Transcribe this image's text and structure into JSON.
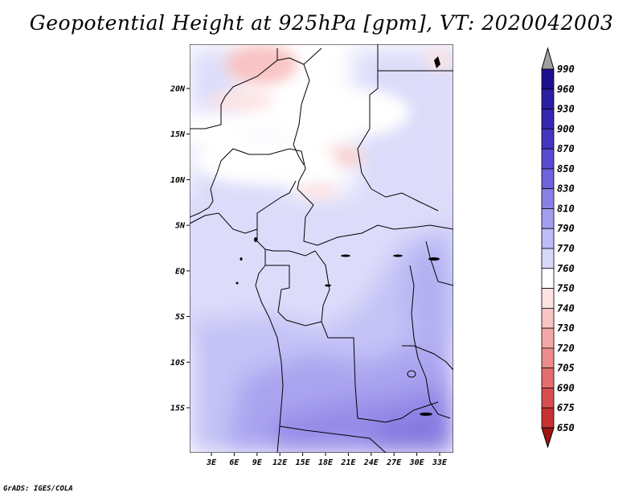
{
  "title": "Geopotential Height at 925hPa [gpm], VT: 2020042003",
  "credit": "GrADS: IGES/COLA",
  "map": {
    "lat_labels": [
      {
        "label": "20N",
        "lat": 20
      },
      {
        "label": "15N",
        "lat": 15
      },
      {
        "label": "10N",
        "lat": 10
      },
      {
        "label": "5N",
        "lat": 5
      },
      {
        "label": "EQ",
        "lat": 0
      },
      {
        "label": "5S",
        "lat": -5
      },
      {
        "label": "10S",
        "lat": -10
      },
      {
        "label": "15S",
        "lat": -15
      }
    ],
    "lon_labels": [
      {
        "label": "3E",
        "lon": 3
      },
      {
        "label": "6E",
        "lon": 6
      },
      {
        "label": "9E",
        "lon": 9
      },
      {
        "label": "12E",
        "lon": 12
      },
      {
        "label": "15E",
        "lon": 15
      },
      {
        "label": "18E",
        "lon": 18
      },
      {
        "label": "21E",
        "lon": 21
      },
      {
        "label": "24E",
        "lon": 24
      },
      {
        "label": "27E",
        "lon": 27
      },
      {
        "label": "30E",
        "lon": 30
      },
      {
        "label": "33E",
        "lon": 33
      }
    ]
  },
  "colorbar": {
    "levels": [
      {
        "label": "990",
        "color": "#1e0f8c"
      },
      {
        "label": "960",
        "color": "#2a1fa0"
      },
      {
        "label": "930",
        "color": "#3527b0"
      },
      {
        "label": "900",
        "color": "#4534c0"
      },
      {
        "label": "870",
        "color": "#5a4ad0"
      },
      {
        "label": "850",
        "color": "#6f62db"
      },
      {
        "label": "830",
        "color": "#8a80e6"
      },
      {
        "label": "810",
        "color": "#a49ef0"
      },
      {
        "label": "790",
        "color": "#bebcf5"
      },
      {
        "label": "770",
        "color": "#d8d8fb"
      },
      {
        "label": "760",
        "color": "#ffffff"
      },
      {
        "label": "750",
        "color": "#fde2e2"
      },
      {
        "label": "740",
        "color": "#f8c4c4"
      },
      {
        "label": "730",
        "color": "#f2a8a8"
      },
      {
        "label": "720",
        "color": "#ec8c8c"
      },
      {
        "label": "705",
        "color": "#e36e6e"
      },
      {
        "label": "690",
        "color": "#d84e4e"
      },
      {
        "label": "675",
        "color": "#c93232"
      },
      {
        "label": "650",
        "color": "#b41e1e"
      }
    ],
    "top_triangle_color": "#a0a0a0",
    "bottom_triangle_color": "#a01414"
  }
}
